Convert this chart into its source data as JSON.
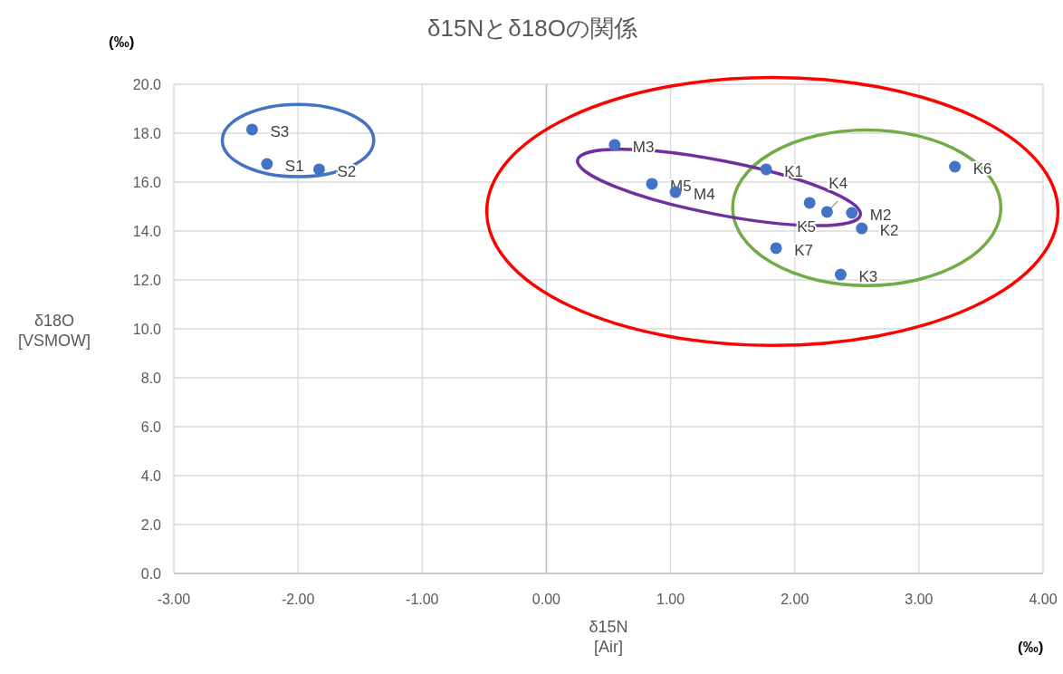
{
  "chart_data": {
    "type": "scatter",
    "title": "δ15Nとδ18Oの関係",
    "xlabel": "δ15N\n[Air]",
    "ylabel": "δ18O\n[VSMOW]",
    "x": [
      -2.37,
      -2.25,
      -1.83,
      0.55,
      0.85,
      1.04,
      1.77,
      2.12,
      2.26,
      2.46,
      2.54,
      1.85,
      2.37,
      3.29
    ],
    "series": [
      {
        "color": "#4472c4",
        "values": [
          18.15,
          16.74,
          16.52,
          17.52,
          15.93,
          15.59,
          16.52,
          15.15,
          14.78,
          14.74,
          14.11,
          13.3,
          12.22,
          16.63
        ]
      }
    ],
    "marker": "circle",
    "grid": true,
    "xlim": [
      -3,
      4
    ],
    "ylim": [
      0,
      20
    ],
    "xticks": [
      {
        "value": -3,
        "label": "-3.00"
      },
      {
        "value": -2,
        "label": "-2.00"
      },
      {
        "value": -1,
        "label": "-1.00"
      },
      {
        "value": 0,
        "label": "0.00"
      },
      {
        "value": 1,
        "label": "1.00"
      },
      {
        "value": 2,
        "label": "2.00"
      },
      {
        "value": 3,
        "label": "3.00"
      },
      {
        "value": 4,
        "label": "4.00"
      }
    ],
    "yticks": [
      {
        "value": 0,
        "label": "0.0"
      },
      {
        "value": 2,
        "label": "2.0"
      },
      {
        "value": 4,
        "label": "4.0"
      },
      {
        "value": 6,
        "label": "6.0"
      },
      {
        "value": 8,
        "label": "8.0"
      },
      {
        "value": 10,
        "label": "10.0"
      },
      {
        "value": 12,
        "label": "12.0"
      },
      {
        "value": 14,
        "label": "14.0"
      },
      {
        "value": 16,
        "label": "16.0"
      },
      {
        "value": 18,
        "label": "18.0"
      },
      {
        "value": 20,
        "label": "20.0"
      }
    ],
    "annotations": [
      {
        "text": "S3",
        "x": -2.37,
        "y": 18.15
      },
      {
        "text": "S1",
        "x": -2.25,
        "y": 16.74
      },
      {
        "text": "S2",
        "x": -1.83,
        "y": 16.52
      },
      {
        "text": "M3",
        "x": 0.55,
        "y": 17.52
      },
      {
        "text": "M5",
        "x": 0.85,
        "y": 15.93
      },
      {
        "text": "M4",
        "x": 1.04,
        "y": 15.59
      },
      {
        "text": "K1",
        "x": 1.77,
        "y": 16.52
      },
      {
        "text": "K5",
        "x": 2.12,
        "y": 15.15
      },
      {
        "text": "K4",
        "x": 2.26,
        "y": 14.78
      },
      {
        "text": "M2",
        "x": 2.46,
        "y": 14.74
      },
      {
        "text": "K2",
        "x": 2.54,
        "y": 14.11
      },
      {
        "text": "K7",
        "x": 1.85,
        "y": 13.3
      },
      {
        "text": "K3",
        "x": 2.37,
        "y": 12.22
      },
      {
        "text": "K6",
        "x": 3.29,
        "y": 16.63
      },
      "(‰)",
      "(‰)"
    ]
  }
}
